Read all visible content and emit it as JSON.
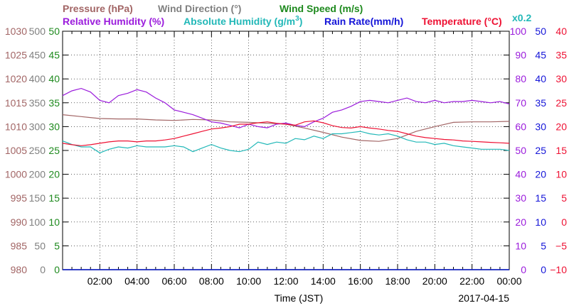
{
  "chart_data": {
    "type": "line",
    "date": "2017-04-15",
    "xlabel": "Time (JST)",
    "x_ticks": [
      "02:00",
      "04:00",
      "06:00",
      "08:00",
      "10:00",
      "12:00",
      "14:00",
      "16:00",
      "18:00",
      "20:00",
      "22:00",
      "00:00"
    ],
    "x_hours_range": [
      0,
      24
    ],
    "legend": {
      "pressure": "Pressure (hPa)",
      "wind_direction": "Wind Direction (°)",
      "wind_speed": "Wind Speed (m/s)",
      "relative_humidity": "Relative Humidity (%)",
      "absolute_humidity_prefix": "Absolute Humidity (g/m",
      "absolute_humidity_sup": "3",
      "absolute_humidity_suffix": ")",
      "rain_rate": "Rain Rate(mm/h)",
      "temperature": "Temperature (°C)",
      "scale_note": "x0.2"
    },
    "axes": {
      "pressure": {
        "range": [
          980,
          1030
        ],
        "ticks": [
          "1030",
          "1025",
          "1020",
          "1015",
          "1010",
          "1005",
          "1000",
          "995",
          "990",
          "985",
          "980"
        ]
      },
      "wind_direction": {
        "range": [
          0,
          500
        ],
        "ticks": [
          "500",
          "450",
          "400",
          "350",
          "300",
          "250",
          "200",
          "150",
          "100",
          "50",
          "0"
        ]
      },
      "wind_speed": {
        "range": [
          0,
          50
        ],
        "ticks": [
          "50",
          "45",
          "40",
          "35",
          "30",
          "25",
          "20",
          "15",
          "10",
          "5",
          "0"
        ]
      },
      "relative_humidity": {
        "range": [
          0,
          100
        ],
        "ticks": [
          "100",
          "90",
          "80",
          "70",
          "60",
          "50",
          "40",
          "30",
          "20",
          "10",
          "0"
        ]
      },
      "rain_rate": {
        "range": [
          0,
          50
        ],
        "ticks": [
          "50",
          "45",
          "40",
          "35",
          "30",
          "25",
          "20",
          "15",
          "10",
          "5",
          "0"
        ]
      },
      "temperature": {
        "range": [
          -10,
          40
        ],
        "ticks": [
          "40",
          "35",
          "30",
          "25",
          "20",
          "15",
          "10",
          "5",
          "0",
          "−5",
          "−10"
        ]
      }
    },
    "series": [
      {
        "name": "Pressure (hPa)",
        "axis": "pressure",
        "x": [
          0,
          1,
          2,
          3,
          4,
          5,
          6,
          7,
          8,
          9,
          10,
          11,
          12,
          13,
          14,
          15,
          16,
          17,
          18,
          19,
          20,
          21,
          22,
          23,
          24
        ],
        "y": [
          1012.5,
          1012.1,
          1011.7,
          1011.6,
          1011.6,
          1011.4,
          1011.3,
          1011.5,
          1011.4,
          1011.0,
          1010.9,
          1010.7,
          1010.5,
          1009.7,
          1008.8,
          1007.8,
          1007.1,
          1006.9,
          1007.5,
          1009.0,
          1010.0,
          1010.9,
          1011.0,
          1011.0,
          1011.1
        ]
      },
      {
        "name": "Relative Humidity (%)",
        "axis": "relative_humidity",
        "x": [
          0,
          0.5,
          1,
          1.5,
          2,
          2.5,
          3,
          3.5,
          4,
          4.5,
          5,
          5.5,
          6,
          6.5,
          7,
          7.5,
          8,
          8.5,
          9,
          9.5,
          10,
          10.5,
          11,
          11.5,
          12,
          12.5,
          13,
          13.5,
          14,
          14.5,
          15,
          15.5,
          16,
          16.5,
          17,
          17.5,
          18,
          18.5,
          19,
          19.5,
          20,
          20.5,
          21,
          21.5,
          22,
          22.5,
          23,
          23.5,
          24
        ],
        "y": [
          73,
          75,
          76,
          74.5,
          71,
          70,
          73,
          74,
          75.5,
          74.5,
          72,
          70,
          67,
          66,
          65,
          63.5,
          62,
          61.5,
          60.5,
          59.5,
          61,
          60,
          59.5,
          61,
          61.5,
          60.5,
          60,
          62,
          63.5,
          66,
          67,
          68.5,
          70.5,
          71,
          70.5,
          70,
          71,
          72,
          70.5,
          70,
          71,
          70,
          70.5,
          70.5,
          71,
          70.5,
          70,
          70.5,
          69.5
        ]
      },
      {
        "name": "Absolute Humidity (g/m3)",
        "axis": "relative_humidity",
        "scale": 0.2,
        "x": [
          0,
          0.5,
          1,
          1.5,
          2,
          2.5,
          3,
          3.5,
          4,
          4.5,
          5,
          5.5,
          6,
          6.5,
          7,
          7.5,
          8,
          8.5,
          9,
          9.5,
          10,
          10.5,
          11,
          11.5,
          12,
          12.5,
          13,
          13.5,
          14,
          14.5,
          15,
          15.5,
          16,
          16.5,
          17,
          17.5,
          18,
          18.5,
          19,
          19.5,
          20,
          20.5,
          21,
          21.5,
          22,
          22.5,
          23,
          23.5,
          24
        ],
        "y": [
          54,
          52.5,
          51.5,
          51.5,
          49,
          50.5,
          51.5,
          51,
          52,
          51.5,
          51.5,
          51.5,
          52,
          51.5,
          49.5,
          51,
          52.5,
          51,
          50,
          49.5,
          50.5,
          53.5,
          52.5,
          53.5,
          53,
          55,
          54.5,
          56,
          55,
          57,
          57,
          57.5,
          58,
          57,
          56.5,
          57,
          56,
          54.5,
          53.5,
          53.5,
          52.5,
          53,
          52,
          51.5,
          51,
          50.5,
          50.5,
          50.5,
          50
        ]
      },
      {
        "name": "Temperature (°C)",
        "axis": "temperature",
        "x": [
          0,
          0.5,
          1,
          1.5,
          2,
          2.5,
          3,
          3.5,
          4,
          4.5,
          5,
          5.5,
          6,
          6.5,
          7,
          7.5,
          8,
          8.5,
          9,
          9.5,
          10,
          10.5,
          11,
          11.5,
          12,
          12.5,
          13,
          13.5,
          14,
          14.5,
          15,
          15.5,
          16,
          16.5,
          17,
          17.5,
          18,
          18.5,
          19,
          19.5,
          20,
          20.5,
          21,
          21.5,
          22,
          22.5,
          23,
          23.5,
          24
        ],
        "y": [
          16.5,
          16.2,
          16,
          16.2,
          16.5,
          16.8,
          17,
          17,
          16.8,
          17,
          17,
          17.2,
          17.5,
          18,
          18.5,
          19,
          19.5,
          19.7,
          20,
          20.5,
          20.5,
          20.8,
          21,
          20.7,
          20.5,
          20.3,
          21,
          21.2,
          20.8,
          20.2,
          19.8,
          19.7,
          20,
          19.7,
          19.5,
          19.2,
          19,
          18.5,
          18,
          17.7,
          17.5,
          17.3,
          17.2,
          17,
          16.9,
          16.8,
          16.7,
          16.6,
          16.5
        ]
      },
      {
        "name": "Wind Speed (m/s)",
        "axis": "wind_speed",
        "x": [
          0,
          24
        ],
        "y": [
          0,
          0
        ]
      },
      {
        "name": "Rain Rate(mm/h)",
        "axis": "rain_rate",
        "x": [
          0,
          24
        ],
        "y": [
          0,
          0
        ]
      }
    ],
    "colors": {
      "pressure": "#a26565",
      "wind_direction": "#808080",
      "wind_speed": "#1e8a1e",
      "relative_humidity": "#9b1cdc",
      "absolute_humidity": "#22b8b8",
      "rain_rate": "#1515d8",
      "temperature": "#ee1133",
      "grid": "#000000"
    },
    "grid": true
  }
}
